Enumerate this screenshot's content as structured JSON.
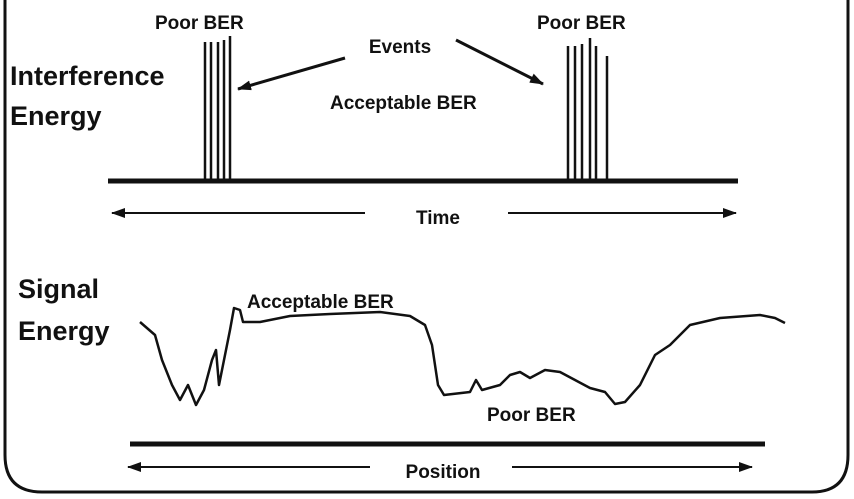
{
  "top_panel": {
    "label": [
      "Interference",
      "Energy"
    ],
    "spike_labels": [
      "Poor BER",
      "Poor BER"
    ],
    "events_label": "Events",
    "baseline_label": "Acceptable BER",
    "axis_label": "Time"
  },
  "bottom_panel": {
    "label": [
      "Signal",
      "Energy"
    ],
    "high_label": "Acceptable BER",
    "low_label": "Poor BER",
    "axis_label": "Position"
  }
}
